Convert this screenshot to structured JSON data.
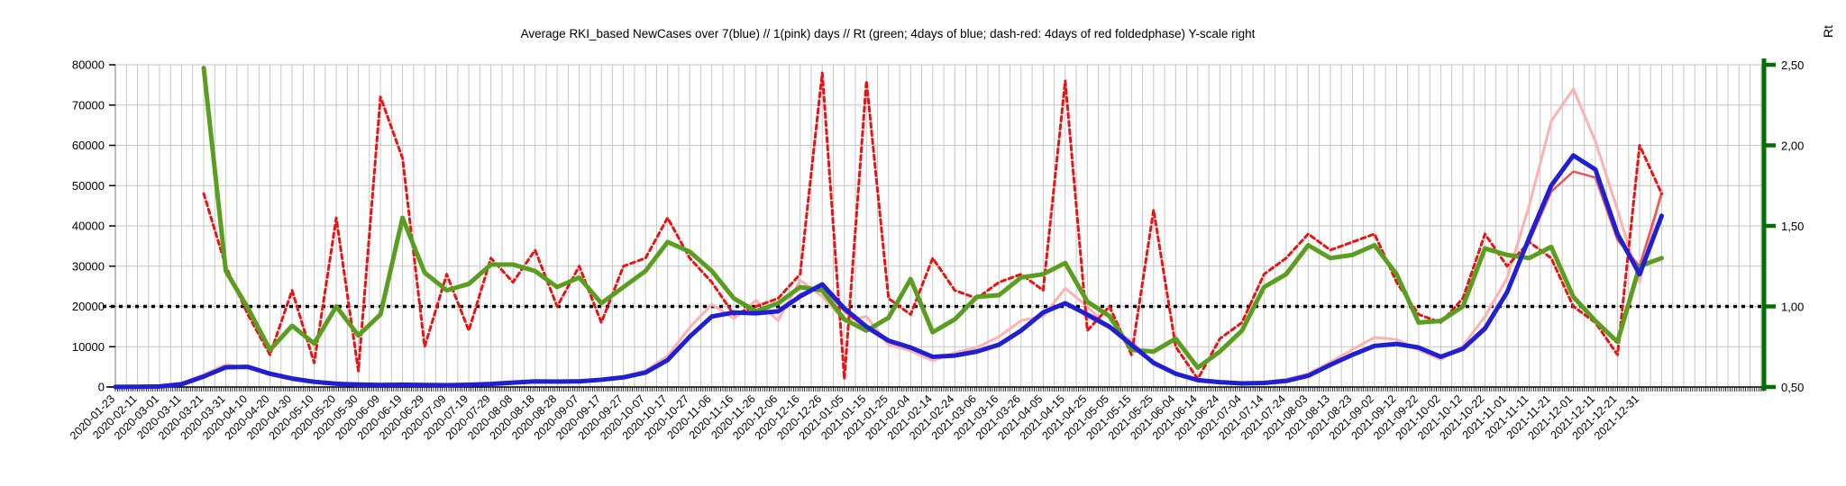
{
  "chart_data": {
    "type": "line",
    "title": "Average RKI_based NewCases over 7(blue) // 1(pink) days //  Rt (green; 4days of blue; dash-red: 4days of red foldedphase) Y-scale right",
    "legend": "none",
    "grid": {
      "vertical_every_categories": 5,
      "horizontal_every": 10000,
      "color": "#c6c6c6"
    },
    "y_left": {
      "min": 0,
      "max": 80000,
      "tick_values": [
        0,
        10000,
        20000,
        30000,
        40000,
        50000,
        60000,
        70000,
        80000
      ],
      "tick_labels": [
        "0",
        "10000",
        "20000",
        "30000",
        "40000",
        "50000",
        "60000",
        "70000",
        "80000"
      ]
    },
    "y_right": {
      "title": "Rt",
      "min": 0.5,
      "max": 2.5,
      "tick_values": [
        0.5,
        1.0,
        1.5,
        2.0,
        2.5
      ],
      "tick_labels": [
        "0,50",
        "1,00",
        "1,50",
        "2,00",
        "2,50"
      ],
      "axis_color": "#007000"
    },
    "reference_line": {
      "axis": "right",
      "value": 1.0,
      "equals_left_value": 20000,
      "style": "dotted",
      "color": "#000000"
    },
    "x_axis_extends_beyond_data": true,
    "x_labels": [
      "2020-01-23",
      "2020-02-11",
      "2020-03-01",
      "2020-03-11",
      "2020-03-21",
      "2020-03-31",
      "2020-04-10",
      "2020-04-20",
      "2020-04-30",
      "2020-05-10",
      "2020-05-20",
      "2020-05-30",
      "2020-06-09",
      "2020-06-19",
      "2020-06-29",
      "2020-07-09",
      "2020-07-19",
      "2020-07-29",
      "2020-08-08",
      "2020-08-18",
      "2020-08-28",
      "2020-09-07",
      "2020-09-17",
      "2020-09-27",
      "2020-10-07",
      "2020-10-17",
      "2020-10-27",
      "2020-11-06",
      "2020-11-16",
      "2020-11-26",
      "2020-12-06",
      "2020-12-16",
      "2020-12-26",
      "2021-01-05",
      "2021-01-15",
      "2021-01-25",
      "2021-02-04",
      "2021-02-14",
      "2021-02-24",
      "2021-03-06",
      "2021-03-16",
      "2021-03-26",
      "2021-04-05",
      "2021-04-15",
      "2021-04-25",
      "2021-05-05",
      "2021-05-15",
      "2021-05-25",
      "2021-06-04",
      "2021-06-14",
      "2021-06-24",
      "2021-07-04",
      "2021-07-14",
      "2021-07-24",
      "2021-08-03",
      "2021-08-13",
      "2021-08-23",
      "2021-09-02",
      "2021-09-12",
      "2021-09-22",
      "2021-10-02",
      "2021-10-12",
      "2021-10-22",
      "2021-11-01",
      "2021-11-11",
      "2021-11-21",
      "2021-12-01",
      "2021-12-11",
      "2021-12-21",
      "2021-12-31",
      ""
    ],
    "series": [
      {
        "name": "NewCases 1 day (pink)",
        "axis": "left",
        "color": "#ffb0b0",
        "width": 3,
        "dash": null,
        "values": [
          30,
          60,
          250,
          1000,
          3100,
          5600,
          4700,
          3000,
          1800,
          1000,
          650,
          400,
          350,
          500,
          400,
          380,
          520,
          900,
          1250,
          1600,
          1150,
          1300,
          2000,
          2600,
          4100,
          7700,
          14800,
          20500,
          17000,
          21500,
          16500,
          26500,
          22500,
          16500,
          17500,
          10500,
          9000,
          6500,
          8500,
          9800,
          12500,
          16500,
          17500,
          24500,
          20000,
          14500,
          11500,
          5500,
          3600,
          1600,
          1000,
          800,
          1200,
          1900,
          3300,
          6200,
          9300,
          12300,
          11800,
          9200,
          6800,
          10200,
          17500,
          27000,
          45000,
          66000,
          74000,
          61000,
          44000,
          26000,
          49000
        ]
      },
      {
        "name": "NewCases red foldedphase (solid red)",
        "axis": "left",
        "color": "#ea5555",
        "width": 2.5,
        "dash": null,
        "values": [
          null,
          null,
          200,
          800,
          2800,
          5100,
          4800,
          3200,
          2000,
          1250,
          780,
          560,
          480,
          530,
          480,
          440,
          540,
          760,
          1120,
          1380,
          1300,
          1380,
          1850,
          2450,
          3700,
          6900,
          12800,
          17800,
          18200,
          18600,
          18500,
          23000,
          25000,
          18800,
          14500,
          11200,
          9500,
          7300,
          8000,
          9000,
          10800,
          14300,
          18800,
          21000,
          17500,
          14600,
          10200,
          5800,
          3200,
          1650,
          1150,
          880,
          1050,
          1550,
          2900,
          5700,
          8300,
          10400,
          10500,
          9500,
          7300,
          9800,
          15000,
          24000,
          36000,
          48500,
          53500,
          52000,
          36500,
          30000,
          48000
        ]
      },
      {
        "name": "Rt dash-red (4days of red foldedphase)",
        "axis": "right",
        "color": "#ee1111",
        "width": 3,
        "dash": "5 4",
        "values": [
          null,
          null,
          null,
          null,
          1.7,
          1.25,
          0.95,
          0.7,
          1.1,
          0.65,
          1.55,
          0.6,
          2.3,
          1.92,
          0.75,
          1.2,
          0.85,
          1.3,
          1.15,
          1.35,
          1.0,
          1.25,
          0.9,
          1.25,
          1.3,
          1.55,
          1.3,
          1.15,
          0.95,
          1.0,
          1.05,
          1.2,
          2.45,
          0.55,
          2.4,
          1.05,
          0.95,
          1.3,
          1.1,
          1.05,
          1.15,
          1.2,
          1.1,
          2.4,
          0.85,
          1.0,
          0.7,
          1.6,
          0.75,
          0.55,
          0.8,
          0.9,
          1.2,
          1.3,
          1.45,
          1.35,
          1.4,
          1.45,
          1.15,
          0.95,
          0.9,
          1.05,
          1.45,
          1.25,
          1.4,
          1.3,
          1.0,
          0.9,
          0.7,
          2.0,
          1.7
        ]
      },
      {
        "name": "Rt green (4days of blue)",
        "axis": "right",
        "color": "#5a9e20",
        "width": 5,
        "dash": null,
        "values": [
          null,
          null,
          null,
          null,
          2.48,
          1.22,
          0.99,
          0.73,
          0.88,
          0.77,
          1.0,
          0.82,
          0.95,
          1.55,
          1.21,
          1.1,
          1.14,
          1.26,
          1.26,
          1.22,
          1.12,
          1.18,
          1.02,
          1.12,
          1.22,
          1.4,
          1.34,
          1.22,
          1.05,
          0.97,
          1.02,
          1.12,
          1.1,
          0.92,
          0.85,
          0.93,
          1.17,
          0.84,
          0.92,
          1.06,
          1.07,
          1.18,
          1.2,
          1.27,
          1.03,
          0.94,
          0.73,
          0.72,
          0.8,
          0.62,
          0.72,
          0.85,
          1.12,
          1.2,
          1.38,
          1.3,
          1.32,
          1.38,
          1.2,
          0.9,
          0.91,
          1.0,
          1.36,
          1.32,
          1.3,
          1.37,
          1.06,
          0.91,
          0.78,
          1.25,
          1.3
        ]
      },
      {
        "name": "NewCases 7 day average (blue)",
        "axis": "left",
        "color": "#1f1fd3",
        "width": 5,
        "dash": null,
        "values": [
          30,
          50,
          150,
          700,
          2600,
          4900,
          5000,
          3300,
          2100,
          1300,
          800,
          600,
          500,
          550,
          500,
          450,
          550,
          750,
          1100,
          1400,
          1350,
          1400,
          1800,
          2400,
          3600,
          6700,
          12500,
          17500,
          18500,
          18300,
          18800,
          22500,
          25500,
          19500,
          15000,
          11500,
          9800,
          7500,
          7800,
          8800,
          10500,
          14000,
          18500,
          20800,
          18000,
          15000,
          10500,
          6000,
          3300,
          1700,
          1200,
          900,
          1000,
          1500,
          2800,
          5500,
          8000,
          10200,
          10700,
          9800,
          7500,
          9500,
          14500,
          23500,
          37000,
          50000,
          57500,
          54000,
          38000,
          28000,
          42500
        ]
      }
    ]
  }
}
